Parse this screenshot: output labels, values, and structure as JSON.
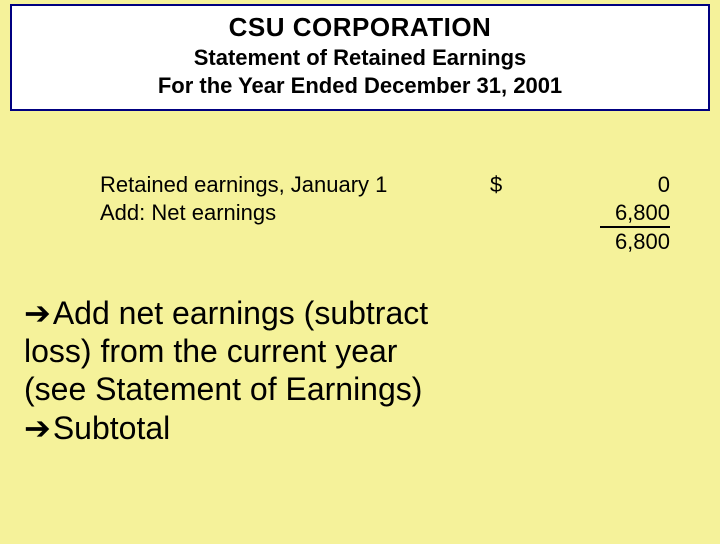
{
  "header": {
    "title": "CSU CORPORATION",
    "line1": "Statement of Retained Earnings",
    "line2": "For the Year Ended December 31, 2001"
  },
  "table": {
    "rows": [
      {
        "label": "Retained earnings, January 1",
        "currency": "$",
        "value": "0"
      },
      {
        "label": "Add: Net earnings",
        "currency": "",
        "value": "6,800"
      }
    ],
    "subtotal": "6,800"
  },
  "bullets": {
    "arrow": "➔",
    "b1_l1": "Add net earnings (subtract",
    "b1_l2": "loss) from the current year",
    "b1_l3": "(see Statement of Earnings)",
    "b2": "Subtotal"
  }
}
